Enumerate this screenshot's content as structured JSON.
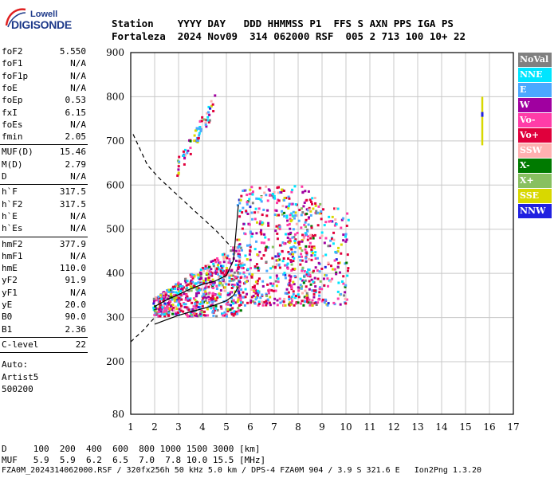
{
  "logo": {
    "brand": "Lowell",
    "name": "DIGISONDE"
  },
  "header": {
    "line1": "Station    YYYY DAY   DDD HHMMSS P1  FFS S AXN PPS IGA PS",
    "line2": "Fortaleza  2024 Nov09  314 062000 RSF  005 2 713 100 10+ 22"
  },
  "params": {
    "group1": [
      {
        "name": "foF2",
        "value": "5.550"
      },
      {
        "name": "foF1",
        "value": "N/A"
      },
      {
        "name": "foF1p",
        "value": "N/A"
      },
      {
        "name": "foE",
        "value": "N/A"
      },
      {
        "name": "foEp",
        "value": "0.53"
      },
      {
        "name": "fxI",
        "value": "6.15"
      },
      {
        "name": "foEs",
        "value": "N/A"
      },
      {
        "name": "fmin",
        "value": "2.05"
      }
    ],
    "group2": [
      {
        "name": "MUF(D)",
        "value": "15.46"
      },
      {
        "name": "M(D)",
        "value": "2.79"
      },
      {
        "name": "D",
        "value": "N/A"
      }
    ],
    "group3": [
      {
        "name": "h`F",
        "value": "317.5"
      },
      {
        "name": "h`F2",
        "value": "317.5"
      },
      {
        "name": "h`E",
        "value": "N/A"
      },
      {
        "name": "h`Es",
        "value": "N/A"
      }
    ],
    "group4": [
      {
        "name": "hmF2",
        "value": "377.9"
      },
      {
        "name": "hmF1",
        "value": "N/A"
      },
      {
        "name": "hmE",
        "value": "110.0"
      },
      {
        "name": "yF2",
        "value": "91.9"
      },
      {
        "name": "yF1",
        "value": "N/A"
      },
      {
        "name": "yE",
        "value": "20.0"
      },
      {
        "name": "B0",
        "value": "90.0"
      },
      {
        "name": "B1",
        "value": "2.36"
      }
    ],
    "group5": [
      {
        "name": "C-level",
        "value": "22"
      }
    ],
    "auto": [
      "Auto:",
      "Artist5",
      "500200"
    ]
  },
  "legend": [
    {
      "label": "NoVal",
      "color": "#808080"
    },
    {
      "label": "NNE",
      "color": "#00e5ff"
    },
    {
      "label": "E",
      "color": "#4aa8ff"
    },
    {
      "label": "W",
      "color": "#a000a0"
    },
    {
      "label": "Vo-",
      "color": "#ff3ca8"
    },
    {
      "label": "Vo+",
      "color": "#e0003c"
    },
    {
      "label": "SSW",
      "color": "#ffb0b0"
    },
    {
      "label": "X-",
      "color": "#007a00"
    },
    {
      "label": "X+",
      "color": "#88c060"
    },
    {
      "label": "SSE",
      "color": "#d8d800"
    },
    {
      "label": "NNW",
      "color": "#2020e0"
    }
  ],
  "footer": {
    "line1": "D     100  200  400  600  800 1000 1500 3000 [km]",
    "line2": "MUF   5.9  5.9  6.2  6.5  7.0  7.8 10.0 15.5 [MHz]",
    "line3": "FZA0M_2024314062000.RSF / 320fx256h 50 kHz 5.0 km / DPS-4 FZA0M 904 / 3.9 S 321.6 E   Ion2Png 1.3.20"
  },
  "chart_data": {
    "type": "scatter",
    "xlabel": "",
    "ylabel": "",
    "xlim": [
      1,
      17
    ],
    "ylim": [
      80,
      900
    ],
    "x_ticks": [
      1,
      2,
      3,
      4,
      5,
      6,
      7,
      8,
      9,
      10,
      11,
      12,
      13,
      14,
      15,
      16,
      17
    ],
    "y_ticks": [
      80,
      200,
      300,
      400,
      500,
      600,
      700,
      800,
      900
    ],
    "grid": true,
    "traces": [
      {
        "name": "",
        "style": "solid",
        "x": [
          2.0,
          2.5,
          3.0,
          3.5,
          4.0,
          4.5,
          5.0,
          5.3,
          5.5
        ],
        "y": [
          325,
          340,
          352,
          365,
          375,
          382,
          395,
          430,
          555
        ]
      },
      {
        "name": "",
        "style": "solid",
        "x": [
          2.0,
          2.5,
          3.0,
          3.5,
          4.0,
          4.5,
          5.0,
          5.3,
          5.5
        ],
        "y": [
          285,
          295,
          305,
          313,
          320,
          328,
          338,
          350,
          370
        ]
      },
      {
        "name": "",
        "style": "dashed",
        "x": [
          1.1,
          1.4,
          1.7,
          2.2,
          2.8,
          3.4,
          4.0,
          4.6,
          5.2
        ],
        "y": [
          715,
          680,
          645,
          615,
          585,
          555,
          525,
          495,
          460
        ]
      },
      {
        "name": "",
        "style": "dashed",
        "x": [
          1.0,
          1.5,
          2.0
        ],
        "y": [
          245,
          270,
          300
        ]
      },
      {
        "name": "",
        "style": "vbar",
        "color": "#d8d800",
        "x": [
          15.7,
          15.7
        ],
        "y": [
          690,
          800
        ]
      }
    ],
    "echo_clusters": [
      {
        "x_range": [
          1.9,
          5.6
        ],
        "y_range": [
          305,
          480
        ]
      },
      {
        "x_range": [
          5.4,
          8.7
        ],
        "y_range": [
          330,
          600
        ]
      },
      {
        "x_range": [
          7.5,
          10.1
        ],
        "y_range": [
          330,
          560
        ]
      },
      {
        "x_range": [
          2.9,
          4.5
        ],
        "y_range": [
          620,
          800
        ]
      }
    ]
  }
}
